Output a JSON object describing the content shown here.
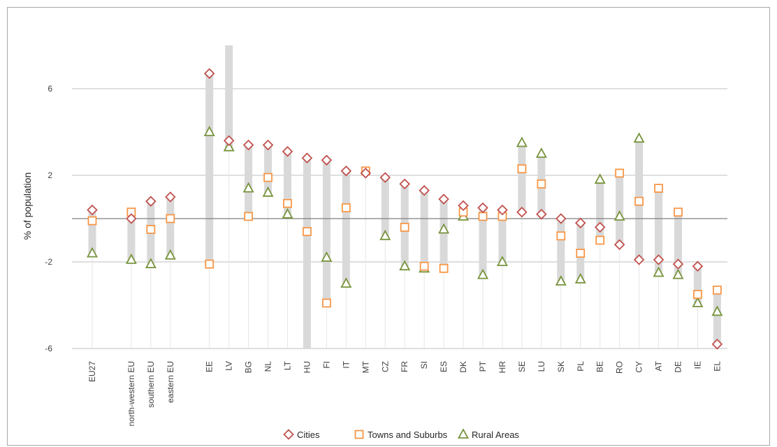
{
  "chart_data": {
    "type": "scatter",
    "title": "",
    "xlabel": "",
    "ylabel": "% of population",
    "ylim": [
      -6,
      8
    ],
    "yticks": [
      -6,
      -2,
      2,
      6
    ],
    "ytick_labels": [
      "-6",
      "-2",
      "2",
      "6"
    ],
    "grid": true,
    "legend_position": "bottom",
    "categories": [
      "EU27",
      "north-western EU",
      "southern EU",
      "eastern EU",
      "EE",
      "LV",
      "BG",
      "NL",
      "LT",
      "HU",
      "FI",
      "IT",
      "MT",
      "CZ",
      "FR",
      "SI",
      "ES",
      "DK",
      "PT",
      "HR",
      "SE",
      "LU",
      "SK",
      "PL",
      "BE",
      "RO",
      "CY",
      "AT",
      "DE",
      "IE",
      "EL"
    ],
    "slots": [
      0,
      2,
      3,
      4,
      6,
      7,
      8,
      9,
      10,
      11,
      12,
      13,
      14,
      15,
      16,
      17,
      18,
      19,
      20,
      21,
      22,
      23,
      24,
      25,
      26,
      27,
      28,
      29,
      30,
      31,
      32
    ],
    "series": [
      {
        "name": "Cities",
        "marker": "diamond",
        "color": "#c0504d",
        "values": [
          0.4,
          0.0,
          0.8,
          1.0,
          6.7,
          3.6,
          3.4,
          3.4,
          3.1,
          2.8,
          2.7,
          2.2,
          2.1,
          1.9,
          1.6,
          1.3,
          0.9,
          0.6,
          0.5,
          0.4,
          0.3,
          0.2,
          0.0,
          -0.2,
          -0.4,
          -1.2,
          -1.9,
          -1.9,
          -2.1,
          -2.2,
          -5.8
        ]
      },
      {
        "name": "Towns and Suburbs",
        "marker": "square",
        "color": "#f79646",
        "values": [
          -0.1,
          0.3,
          -0.5,
          0.0,
          -2.1,
          null,
          0.1,
          1.9,
          0.7,
          -0.6,
          -3.9,
          0.5,
          2.2,
          null,
          -0.4,
          -2.2,
          -2.3,
          0.3,
          0.1,
          0.1,
          2.3,
          1.6,
          -0.8,
          -1.6,
          -1.0,
          2.1,
          0.8,
          1.4,
          0.3,
          -3.5,
          -3.3
        ]
      },
      {
        "name": "Rural Areas",
        "marker": "triangle",
        "color": "#77933c",
        "values": [
          -1.6,
          -1.9,
          -2.1,
          -1.7,
          4.0,
          3.3,
          1.4,
          1.2,
          0.2,
          null,
          -1.8,
          -3.0,
          null,
          -0.8,
          -2.2,
          -2.3,
          -0.5,
          0.1,
          -2.6,
          -2.0,
          3.5,
          3.0,
          -2.9,
          -2.8,
          1.8,
          0.1,
          3.7,
          -2.5,
          -2.6,
          -3.9,
          -4.3
        ]
      }
    ],
    "ranges": [
      [
        -1.6,
        0.4
      ],
      [
        -1.9,
        0.3
      ],
      [
        -2.1,
        0.8
      ],
      [
        -1.7,
        1.0
      ],
      [
        -2.1,
        6.7
      ],
      [
        3.3,
        8.0
      ],
      [
        0.1,
        3.4
      ],
      [
        1.2,
        3.4
      ],
      [
        0.2,
        3.1
      ],
      [
        -6.0,
        2.8
      ],
      [
        -3.9,
        2.7
      ],
      [
        -3.0,
        2.2
      ],
      [
        2.1,
        2.2
      ],
      [
        -0.8,
        1.9
      ],
      [
        -2.2,
        1.6
      ],
      [
        -2.3,
        1.3
      ],
      [
        -2.3,
        0.9
      ],
      [
        0.1,
        0.6
      ],
      [
        -2.6,
        0.5
      ],
      [
        -2.0,
        0.4
      ],
      [
        0.3,
        3.5
      ],
      [
        0.2,
        3.0
      ],
      [
        -2.9,
        0.0
      ],
      [
        -2.8,
        -0.2
      ],
      [
        -1.0,
        1.8
      ],
      [
        -1.2,
        2.1
      ],
      [
        -1.9,
        3.7
      ],
      [
        -2.5,
        1.4
      ],
      [
        -2.6,
        0.3
      ],
      [
        -3.9,
        -2.2
      ],
      [
        -5.8,
        -3.3
      ]
    ],
    "colors": {
      "range_bar": "#d9d9d9",
      "grid": "#bfbfbf",
      "zero_line": "#7f7f7f",
      "axis_text": "#404040"
    }
  }
}
